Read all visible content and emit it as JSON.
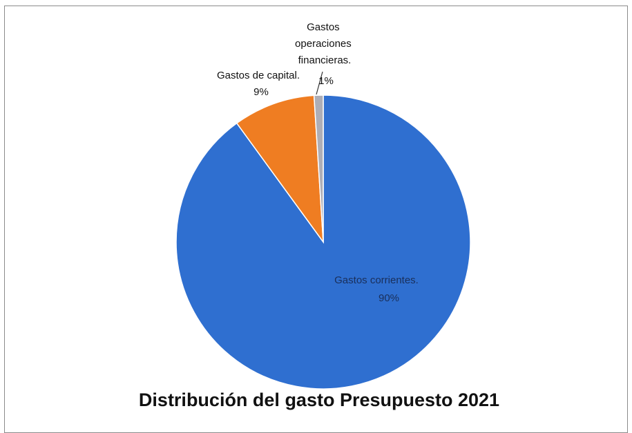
{
  "chart_data": {
    "type": "pie",
    "title": "Distribución del gasto Presupuesto 2021",
    "slices": [
      {
        "label": "Gastos corrientes.",
        "pct_label": "90%",
        "value": 90,
        "color": "#2f6fd0"
      },
      {
        "label": "Gastos de capital.",
        "pct_label": "9%",
        "value": 9,
        "color": "#ef7d22"
      },
      {
        "label": "Gastos operaciones financieras.",
        "pct_label": "1%",
        "value": 1,
        "color": "#aeaeb6"
      }
    ],
    "legend": "none",
    "start_angle": "12 o'clock, clockwise"
  }
}
